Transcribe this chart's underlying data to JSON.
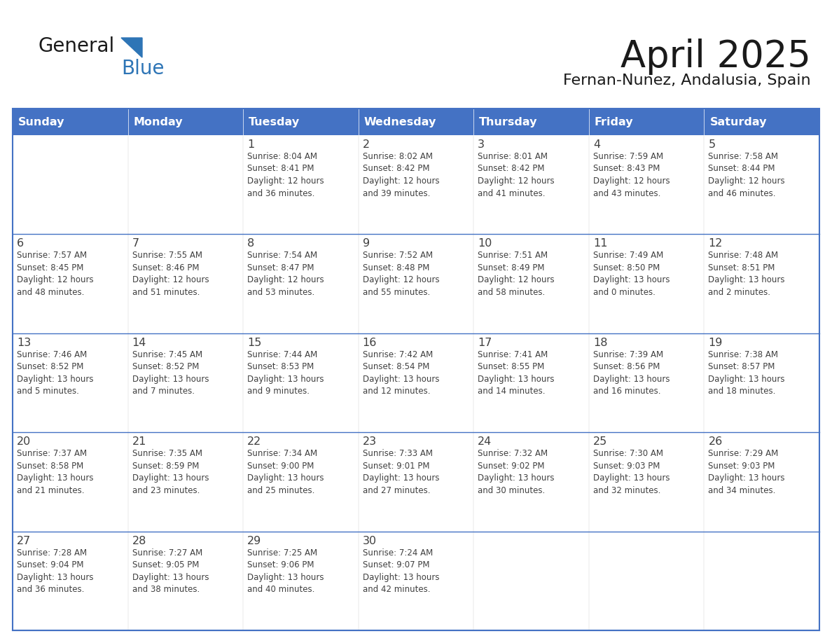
{
  "title": "April 2025",
  "subtitle": "Fernan-Nunez, Andalusia, Spain",
  "header_color": "#4472C4",
  "header_text_color": "#FFFFFF",
  "cell_bg_color": "#FFFFFF",
  "row_divider_color": "#4472C4",
  "border_color": "#4472C4",
  "text_color": "#404040",
  "days_of_week": [
    "Sunday",
    "Monday",
    "Tuesday",
    "Wednesday",
    "Thursday",
    "Friday",
    "Saturday"
  ],
  "logo_general_color": "#1a1a1a",
  "logo_blue_color": "#2E75B6",
  "weeks": [
    [
      {
        "day": "",
        "info": ""
      },
      {
        "day": "",
        "info": ""
      },
      {
        "day": "1",
        "info": "Sunrise: 8:04 AM\nSunset: 8:41 PM\nDaylight: 12 hours\nand 36 minutes."
      },
      {
        "day": "2",
        "info": "Sunrise: 8:02 AM\nSunset: 8:42 PM\nDaylight: 12 hours\nand 39 minutes."
      },
      {
        "day": "3",
        "info": "Sunrise: 8:01 AM\nSunset: 8:42 PM\nDaylight: 12 hours\nand 41 minutes."
      },
      {
        "day": "4",
        "info": "Sunrise: 7:59 AM\nSunset: 8:43 PM\nDaylight: 12 hours\nand 43 minutes."
      },
      {
        "day": "5",
        "info": "Sunrise: 7:58 AM\nSunset: 8:44 PM\nDaylight: 12 hours\nand 46 minutes."
      }
    ],
    [
      {
        "day": "6",
        "info": "Sunrise: 7:57 AM\nSunset: 8:45 PM\nDaylight: 12 hours\nand 48 minutes."
      },
      {
        "day": "7",
        "info": "Sunrise: 7:55 AM\nSunset: 8:46 PM\nDaylight: 12 hours\nand 51 minutes."
      },
      {
        "day": "8",
        "info": "Sunrise: 7:54 AM\nSunset: 8:47 PM\nDaylight: 12 hours\nand 53 minutes."
      },
      {
        "day": "9",
        "info": "Sunrise: 7:52 AM\nSunset: 8:48 PM\nDaylight: 12 hours\nand 55 minutes."
      },
      {
        "day": "10",
        "info": "Sunrise: 7:51 AM\nSunset: 8:49 PM\nDaylight: 12 hours\nand 58 minutes."
      },
      {
        "day": "11",
        "info": "Sunrise: 7:49 AM\nSunset: 8:50 PM\nDaylight: 13 hours\nand 0 minutes."
      },
      {
        "day": "12",
        "info": "Sunrise: 7:48 AM\nSunset: 8:51 PM\nDaylight: 13 hours\nand 2 minutes."
      }
    ],
    [
      {
        "day": "13",
        "info": "Sunrise: 7:46 AM\nSunset: 8:52 PM\nDaylight: 13 hours\nand 5 minutes."
      },
      {
        "day": "14",
        "info": "Sunrise: 7:45 AM\nSunset: 8:52 PM\nDaylight: 13 hours\nand 7 minutes."
      },
      {
        "day": "15",
        "info": "Sunrise: 7:44 AM\nSunset: 8:53 PM\nDaylight: 13 hours\nand 9 minutes."
      },
      {
        "day": "16",
        "info": "Sunrise: 7:42 AM\nSunset: 8:54 PM\nDaylight: 13 hours\nand 12 minutes."
      },
      {
        "day": "17",
        "info": "Sunrise: 7:41 AM\nSunset: 8:55 PM\nDaylight: 13 hours\nand 14 minutes."
      },
      {
        "day": "18",
        "info": "Sunrise: 7:39 AM\nSunset: 8:56 PM\nDaylight: 13 hours\nand 16 minutes."
      },
      {
        "day": "19",
        "info": "Sunrise: 7:38 AM\nSunset: 8:57 PM\nDaylight: 13 hours\nand 18 minutes."
      }
    ],
    [
      {
        "day": "20",
        "info": "Sunrise: 7:37 AM\nSunset: 8:58 PM\nDaylight: 13 hours\nand 21 minutes."
      },
      {
        "day": "21",
        "info": "Sunrise: 7:35 AM\nSunset: 8:59 PM\nDaylight: 13 hours\nand 23 minutes."
      },
      {
        "day": "22",
        "info": "Sunrise: 7:34 AM\nSunset: 9:00 PM\nDaylight: 13 hours\nand 25 minutes."
      },
      {
        "day": "23",
        "info": "Sunrise: 7:33 AM\nSunset: 9:01 PM\nDaylight: 13 hours\nand 27 minutes."
      },
      {
        "day": "24",
        "info": "Sunrise: 7:32 AM\nSunset: 9:02 PM\nDaylight: 13 hours\nand 30 minutes."
      },
      {
        "day": "25",
        "info": "Sunrise: 7:30 AM\nSunset: 9:03 PM\nDaylight: 13 hours\nand 32 minutes."
      },
      {
        "day": "26",
        "info": "Sunrise: 7:29 AM\nSunset: 9:03 PM\nDaylight: 13 hours\nand 34 minutes."
      }
    ],
    [
      {
        "day": "27",
        "info": "Sunrise: 7:28 AM\nSunset: 9:04 PM\nDaylight: 13 hours\nand 36 minutes."
      },
      {
        "day": "28",
        "info": "Sunrise: 7:27 AM\nSunset: 9:05 PM\nDaylight: 13 hours\nand 38 minutes."
      },
      {
        "day": "29",
        "info": "Sunrise: 7:25 AM\nSunset: 9:06 PM\nDaylight: 13 hours\nand 40 minutes."
      },
      {
        "day": "30",
        "info": "Sunrise: 7:24 AM\nSunset: 9:07 PM\nDaylight: 13 hours\nand 42 minutes."
      },
      {
        "day": "",
        "info": ""
      },
      {
        "day": "",
        "info": ""
      },
      {
        "day": "",
        "info": ""
      }
    ]
  ]
}
